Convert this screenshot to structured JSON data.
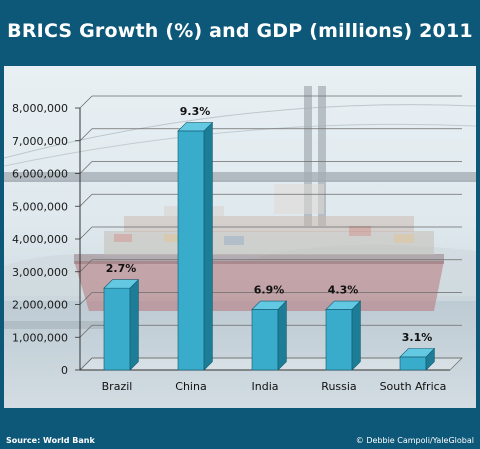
{
  "title": "BRICS Growth (%) and GDP (millions) 2011",
  "footer": {
    "source": "Source: World Bank",
    "credit": "© Debbie Campoli/YaleGlobal"
  },
  "colors": {
    "background": "#0d5878",
    "bar_front": "#3aaccb",
    "bar_side": "#1d7d97",
    "bar_top": "#63c8e2"
  },
  "chart_data": {
    "type": "bar",
    "title": "BRICS Growth (%) and GDP (millions) 2011",
    "categories": [
      "Brazil",
      "China",
      "India",
      "Russia",
      "South Africa"
    ],
    "values": [
      2500000,
      7300000,
      1850000,
      1850000,
      400000
    ],
    "data_labels": [
      "2.7%",
      "9.3%",
      "6.9%",
      "4.3%",
      "3.1%"
    ],
    "y_tick_labels": [
      "0",
      "1,000,000",
      "2,000,000",
      "3,000,000",
      "4,000,000",
      "5,000,000",
      "6,000,000",
      "7,000,000",
      "8,000,000"
    ],
    "ylim": [
      0,
      8000000
    ],
    "grid": true,
    "legend": "none",
    "three_d": true,
    "background_image": "container-ship-under-bridge"
  }
}
